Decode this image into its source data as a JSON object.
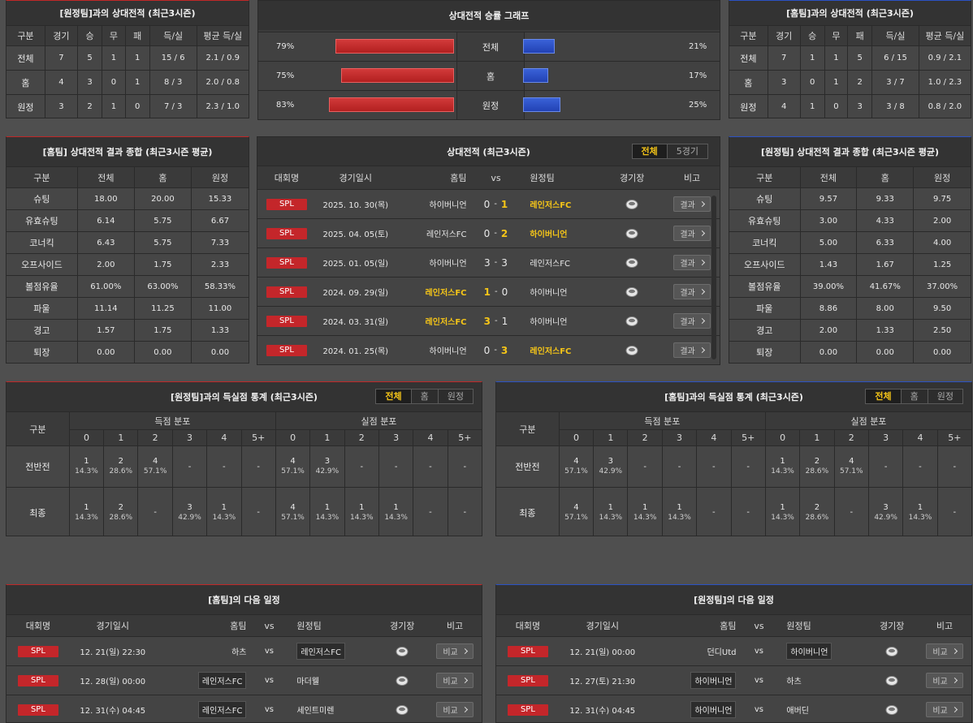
{
  "away_h2h": {
    "title": "[원정팀]과의 상대전적 (최근3시즌)",
    "columns": [
      "구분",
      "경기",
      "승",
      "무",
      "패",
      "득/실",
      "평균 득/실"
    ],
    "rows": [
      [
        "전체",
        "7",
        "5",
        "1",
        "1",
        "15 / 6",
        "2.1 / 0.9"
      ],
      [
        "홈",
        "4",
        "3",
        "0",
        "1",
        "8 / 3",
        "2.0 / 0.8"
      ],
      [
        "원정",
        "3",
        "2",
        "1",
        "0",
        "7 / 3",
        "2.3 / 1.0"
      ]
    ]
  },
  "win_graph": {
    "title": "상대전적 승률 그래프",
    "rows": [
      {
        "label": "전체",
        "left": {
          "value": 79,
          "label": "79%"
        },
        "right": {
          "value": 21,
          "label": "21%"
        }
      },
      {
        "label": "홈",
        "left": {
          "value": 75,
          "label": "75%"
        },
        "right": {
          "value": 17,
          "label": "17%"
        }
      },
      {
        "label": "원정",
        "left": {
          "value": 83,
          "label": "83%"
        },
        "right": {
          "value": 25,
          "label": "25%"
        }
      }
    ]
  },
  "home_h2h": {
    "title": "[홈팀]과의 상대전적 (최근3시즌)",
    "columns": [
      "구분",
      "경기",
      "승",
      "무",
      "패",
      "득/실",
      "평균 득/실"
    ],
    "rows": [
      [
        "전체",
        "7",
        "1",
        "1",
        "5",
        "6 / 15",
        "0.9 / 2.1"
      ],
      [
        "홈",
        "3",
        "0",
        "1",
        "2",
        "3 / 7",
        "1.0 / 2.3"
      ],
      [
        "원정",
        "4",
        "1",
        "0",
        "3",
        "3 / 8",
        "0.8 / 2.0"
      ]
    ]
  },
  "home_summary": {
    "title": "[홈팀] 상대전적 결과 종합 (최근3시즌 평균)",
    "columns": [
      "구분",
      "전체",
      "홈",
      "원정"
    ],
    "rows": [
      [
        "슈팅",
        "18.00",
        "20.00",
        "15.33"
      ],
      [
        "유효슈팅",
        "6.14",
        "5.75",
        "6.67"
      ],
      [
        "코너킥",
        "6.43",
        "5.75",
        "7.33"
      ],
      [
        "오프사이드",
        "2.00",
        "1.75",
        "2.33"
      ],
      [
        "볼점유율",
        "61.00%",
        "63.00%",
        "58.33%"
      ],
      [
        "파울",
        "11.14",
        "11.25",
        "11.00"
      ],
      [
        "경고",
        "1.57",
        "1.75",
        "1.33"
      ],
      [
        "퇴장",
        "0.00",
        "0.00",
        "0.00"
      ]
    ]
  },
  "h2h_matches": {
    "title": "상대전적 (최근3시즌)",
    "tabs": [
      "전체",
      "5경기"
    ],
    "active_tab": 0,
    "columns": [
      "대회명",
      "경기일시",
      "홈팀",
      "vs",
      "원정팀",
      "경기장",
      "비고"
    ],
    "separator": "-",
    "button": "결과",
    "rows": [
      {
        "league": "SPL",
        "date": "2025. 10. 30(목)",
        "home": "하이버니언",
        "home_score": 0,
        "away_score": 1,
        "away": "레인저스FC"
      },
      {
        "league": "SPL",
        "date": "2025. 04. 05(토)",
        "home": "레인저스FC",
        "home_score": 0,
        "away_score": 2,
        "away": "하이버니언"
      },
      {
        "league": "SPL",
        "date": "2025. 01. 05(일)",
        "home": "하이버니언",
        "home_score": 3,
        "away_score": 3,
        "away": "레인저스FC"
      },
      {
        "league": "SPL",
        "date": "2024. 09. 29(일)",
        "home": "레인저스FC",
        "home_score": 1,
        "away_score": 0,
        "away": "하이버니언"
      },
      {
        "league": "SPL",
        "date": "2024. 03. 31(일)",
        "home": "레인저스FC",
        "home_score": 3,
        "away_score": 1,
        "away": "하이버니언"
      },
      {
        "league": "SPL",
        "date": "2024. 01. 25(목)",
        "home": "하이버니언",
        "home_score": 0,
        "away_score": 3,
        "away": "레인저스FC"
      }
    ]
  },
  "away_summary": {
    "title": "[원정팀] 상대전적 결과 종합 (최근3시즌 평균)",
    "columns": [
      "구분",
      "전체",
      "홈",
      "원정"
    ],
    "rows": [
      [
        "슈팅",
        "9.57",
        "9.33",
        "9.75"
      ],
      [
        "유효슈팅",
        "3.00",
        "4.33",
        "2.00"
      ],
      [
        "코너킥",
        "5.00",
        "6.33",
        "4.00"
      ],
      [
        "오프사이드",
        "1.43",
        "1.67",
        "1.25"
      ],
      [
        "볼점유율",
        "39.00%",
        "41.67%",
        "37.00%"
      ],
      [
        "파울",
        "8.86",
        "8.00",
        "9.50"
      ],
      [
        "경고",
        "2.00",
        "1.33",
        "2.50"
      ],
      [
        "퇴장",
        "0.00",
        "0.00",
        "0.00"
      ]
    ]
  },
  "goal_stats": [
    {
      "title": "[원정팀]과의 득실점 통계 (최근3시즌)",
      "tabs": [
        "전체",
        "홈",
        "원정"
      ],
      "active_tab": 0,
      "row_header": "구분",
      "groups": [
        "득점 분포",
        "실점 분포"
      ],
      "goals": [
        "0",
        "1",
        "2",
        "3",
        "4",
        "5+"
      ],
      "rows": [
        {
          "label": "전반전",
          "scored": [
            [
              "1",
              "14.3%"
            ],
            [
              "2",
              "28.6%"
            ],
            [
              "4",
              "57.1%"
            ],
            "-",
            "-",
            "-"
          ],
          "conceded": [
            [
              "4",
              "57.1%"
            ],
            [
              "3",
              "42.9%"
            ],
            "-",
            "-",
            "-",
            "-"
          ]
        },
        {
          "label": "최종",
          "scored": [
            [
              "1",
              "14.3%"
            ],
            [
              "2",
              "28.6%"
            ],
            "-",
            [
              "3",
              "42.9%"
            ],
            [
              "1",
              "14.3%"
            ],
            "-"
          ],
          "conceded": [
            [
              "4",
              "57.1%"
            ],
            [
              "1",
              "14.3%"
            ],
            [
              "1",
              "14.3%"
            ],
            [
              "1",
              "14.3%"
            ],
            "-",
            "-"
          ]
        }
      ]
    },
    {
      "title": "[홈팀]과의 득실점 통계 (최근3시즌)",
      "tabs": [
        "전체",
        "홈",
        "원정"
      ],
      "active_tab": 0,
      "row_header": "구분",
      "groups": [
        "득점 분포",
        "실점 분포"
      ],
      "goals": [
        "0",
        "1",
        "2",
        "3",
        "4",
        "5+"
      ],
      "rows": [
        {
          "label": "전반전",
          "scored": [
            [
              "4",
              "57.1%"
            ],
            [
              "3",
              "42.9%"
            ],
            "-",
            "-",
            "-",
            "-"
          ],
          "conceded": [
            [
              "1",
              "14.3%"
            ],
            [
              "2",
              "28.6%"
            ],
            [
              "4",
              "57.1%"
            ],
            "-",
            "-",
            "-"
          ]
        },
        {
          "label": "최종",
          "scored": [
            [
              "4",
              "57.1%"
            ],
            [
              "1",
              "14.3%"
            ],
            [
              "1",
              "14.3%"
            ],
            [
              "1",
              "14.3%"
            ],
            "-",
            "-"
          ],
          "conceded": [
            [
              "1",
              "14.3%"
            ],
            [
              "2",
              "28.6%"
            ],
            "-",
            [
              "3",
              "42.9%"
            ],
            [
              "1",
              "14.3%"
            ],
            "-"
          ]
        }
      ]
    }
  ],
  "next_schedules": [
    {
      "title": "[홈팀]의 다음 일정",
      "columns": [
        "대회명",
        "경기일시",
        "홈팀",
        "vs",
        "원정팀",
        "경기장",
        "비고"
      ],
      "button": "비교",
      "rows": [
        {
          "league": "SPL",
          "date": "12. 21(일) 22:30",
          "home": "하츠",
          "away": "레인저스FC",
          "highlight": "away"
        },
        {
          "league": "SPL",
          "date": "12. 28(일) 00:00",
          "home": "레인저스FC",
          "away": "마더웰",
          "highlight": "home"
        },
        {
          "league": "SPL",
          "date": "12. 31(수) 04:45",
          "home": "레인저스FC",
          "away": "세인트미렌",
          "highlight": "home"
        }
      ]
    },
    {
      "title": "[원정팀]의 다음 일정",
      "columns": [
        "대회명",
        "경기일시",
        "홈팀",
        "vs",
        "원정팀",
        "경기장",
        "비고"
      ],
      "button": "비교",
      "rows": [
        {
          "league": "SPL",
          "date": "12. 21(일) 00:00",
          "home": "던디Utd",
          "away": "하이버니언",
          "highlight": "away"
        },
        {
          "league": "SPL",
          "date": "12. 27(토) 21:30",
          "home": "하이버니언",
          "away": "하츠",
          "highlight": "home"
        },
        {
          "league": "SPL",
          "date": "12. 31(수) 04:45",
          "home": "하이버니언",
          "away": "애버딘",
          "highlight": "home"
        }
      ]
    }
  ]
}
